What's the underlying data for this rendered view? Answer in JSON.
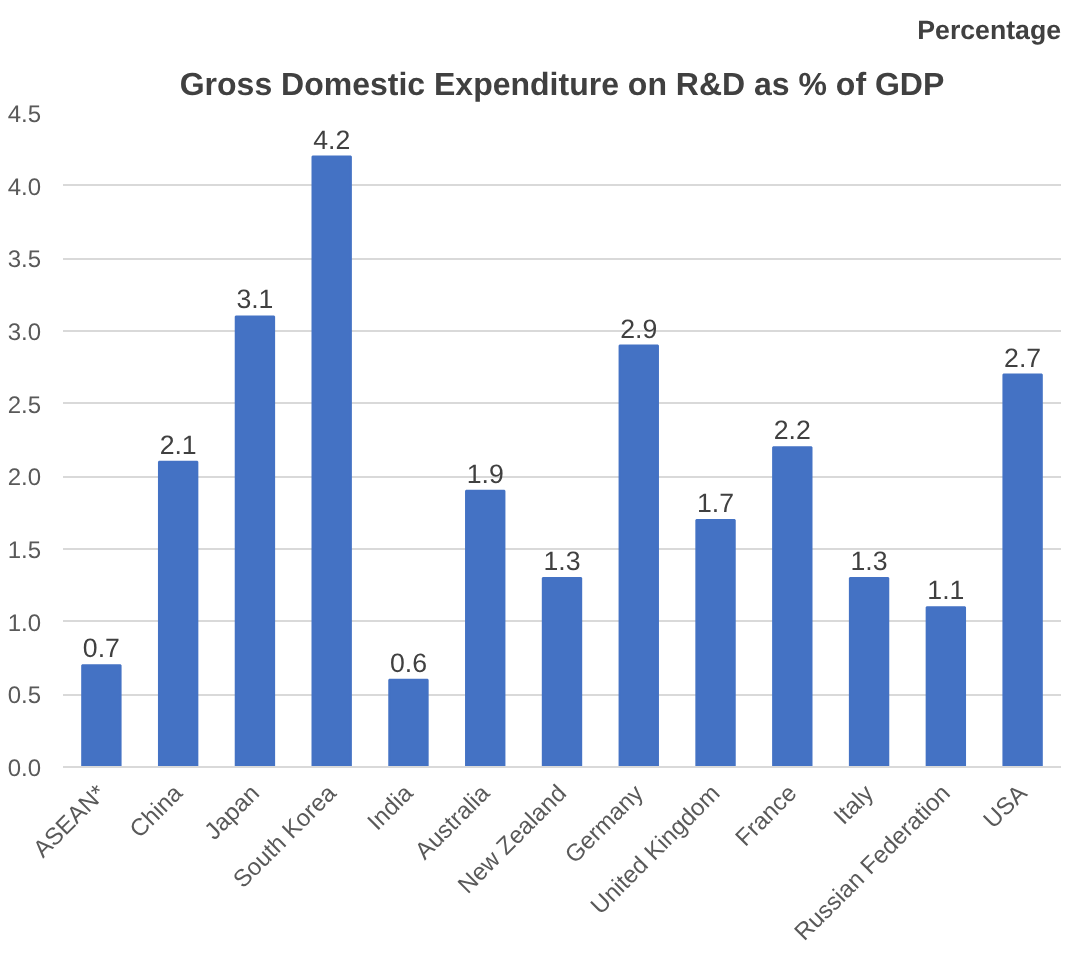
{
  "chart_data": {
    "type": "bar",
    "title": "Gross Domestic Expenditure on R&D as % of GDP",
    "annotations": [
      "Percentage"
    ],
    "categories": [
      "ASEAN*",
      "China",
      "Japan",
      "South Korea",
      "India",
      "Australia",
      "New Zealand",
      "Germany",
      "United Kingdom",
      "France",
      "Italy",
      "Russian Federation",
      "USA"
    ],
    "values": [
      0.7,
      2.1,
      3.1,
      4.2,
      0.6,
      1.9,
      1.3,
      2.9,
      1.7,
      2.2,
      1.3,
      1.1,
      2.7
    ],
    "color": "#4472c4",
    "data_labels": true,
    "grid": "y",
    "ylim": [
      0,
      4.5
    ],
    "yticks": [
      {
        "value": 0,
        "label": "0.0"
      },
      {
        "value": 0.5,
        "label": "0.5"
      },
      {
        "value": 1,
        "label": "1.0"
      },
      {
        "value": 1.5,
        "label": "1.5"
      },
      {
        "value": 2,
        "label": "2.0"
      },
      {
        "value": 2.5,
        "label": "2.5"
      },
      {
        "value": 3,
        "label": "3.0"
      },
      {
        "value": 3.5,
        "label": "3.5"
      },
      {
        "value": 4,
        "label": "4.0"
      },
      {
        "value": 4.5,
        "label": "4.5"
      }
    ],
    "xlabel": null
  }
}
